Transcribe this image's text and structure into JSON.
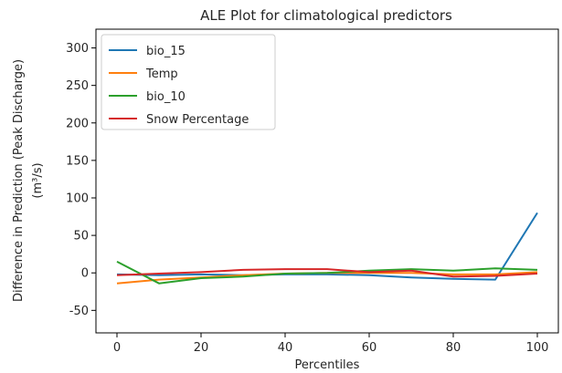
{
  "chart_data": {
    "type": "line",
    "title": "ALE Plot for climatological predictors",
    "xlabel": "Percentiles",
    "ylabel_line1": "Difference in Prediction (Peak Discharge)",
    "ylabel_line2": "(m³/s)",
    "xlim": [
      -5,
      105
    ],
    "ylim": [
      -80,
      325
    ],
    "x_ticks": [
      0,
      20,
      40,
      60,
      80,
      100
    ],
    "y_ticks": [
      -50,
      0,
      50,
      100,
      150,
      200,
      250,
      300
    ],
    "grid": false,
    "legend_position": "upper-left",
    "x": [
      0,
      10,
      20,
      30,
      40,
      50,
      60,
      70,
      80,
      90,
      100
    ],
    "series": [
      {
        "name": "bio_15",
        "color": "#1f77b4",
        "values": [
          -2,
          -3,
          -2,
          -3,
          -2,
          -2,
          -3,
          -6,
          -8,
          -9,
          80
        ]
      },
      {
        "name": "Temp",
        "color": "#ff7f0e",
        "values": [
          -14,
          -9,
          -6,
          -3,
          -1,
          0,
          0,
          0,
          -2,
          -2,
          1
        ]
      },
      {
        "name": "bio_10",
        "color": "#2ca02c",
        "values": [
          15,
          -14,
          -7,
          -5,
          -1,
          0,
          3,
          5,
          3,
          6,
          4
        ]
      },
      {
        "name": "Snow Percentage",
        "color": "#d62728",
        "values": [
          -3,
          -1,
          1,
          4,
          5,
          5,
          1,
          3,
          -5,
          -4,
          -1
        ]
      }
    ]
  }
}
